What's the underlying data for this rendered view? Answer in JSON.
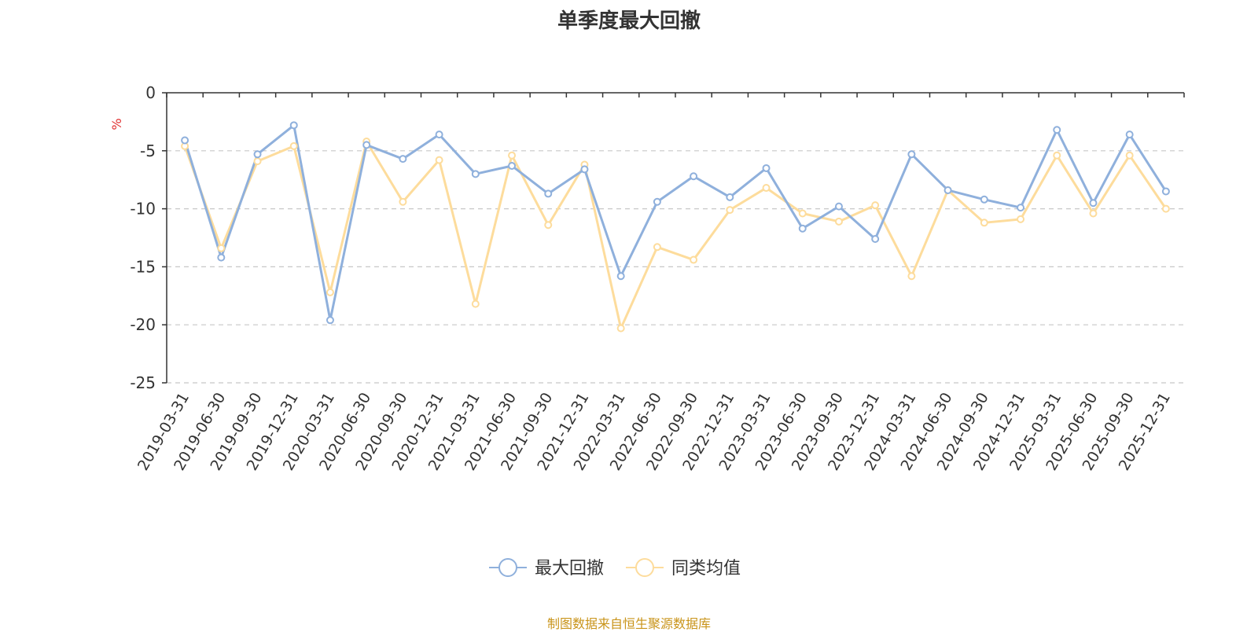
{
  "chart_data": {
    "type": "line",
    "title": "单季度最大回撤",
    "ylabel": "%",
    "ylim": [
      -25,
      0
    ],
    "yticks": [
      0,
      -5,
      -10,
      -15,
      -20,
      -25
    ],
    "grid": true,
    "legend_position": "bottom",
    "categories": [
      "2019-03-31",
      "2019-06-30",
      "2019-09-30",
      "2019-12-31",
      "2020-03-31",
      "2020-06-30",
      "2020-09-30",
      "2020-12-31",
      "2021-03-31",
      "2021-06-30",
      "2021-09-30",
      "2021-12-31",
      "2022-03-31",
      "2022-06-30",
      "2022-09-30",
      "2022-12-31",
      "2023-03-31",
      "2023-06-30",
      "2023-09-30",
      "2023-12-31",
      "2024-03-31",
      "2024-06-30",
      "2024-09-30",
      "2024-12-31",
      "2025-03-31",
      "2025-06-30",
      "2025-09-30",
      "2025-12-31"
    ],
    "series": [
      {
        "name": "最大回撤",
        "color": "#8fb0dc",
        "values": [
          -4.1,
          -14.2,
          -5.3,
          -2.8,
          -19.6,
          -4.5,
          -5.7,
          -3.6,
          -7.0,
          -6.3,
          -8.7,
          -6.6,
          -15.8,
          -9.4,
          -7.2,
          -9.0,
          -6.5,
          -11.7,
          -9.8,
          -12.6,
          -5.3,
          -8.4,
          -9.2,
          -9.9,
          -3.2,
          -9.5,
          -3.6,
          -8.5
        ]
      },
      {
        "name": "同类均值",
        "color": "#fddc9c",
        "values": [
          -4.6,
          -13.4,
          -5.9,
          -4.6,
          -17.2,
          -4.2,
          -9.4,
          -5.8,
          -18.2,
          -5.4,
          -11.4,
          -6.2,
          -20.3,
          -13.3,
          -14.4,
          -10.1,
          -8.2,
          -10.4,
          -11.1,
          -9.7,
          -15.8,
          -8.4,
          -11.2,
          -10.9,
          -5.4,
          -10.4,
          -5.4,
          -10.0
        ]
      }
    ]
  },
  "source_note": "制图数据来自恒生聚源数据库"
}
